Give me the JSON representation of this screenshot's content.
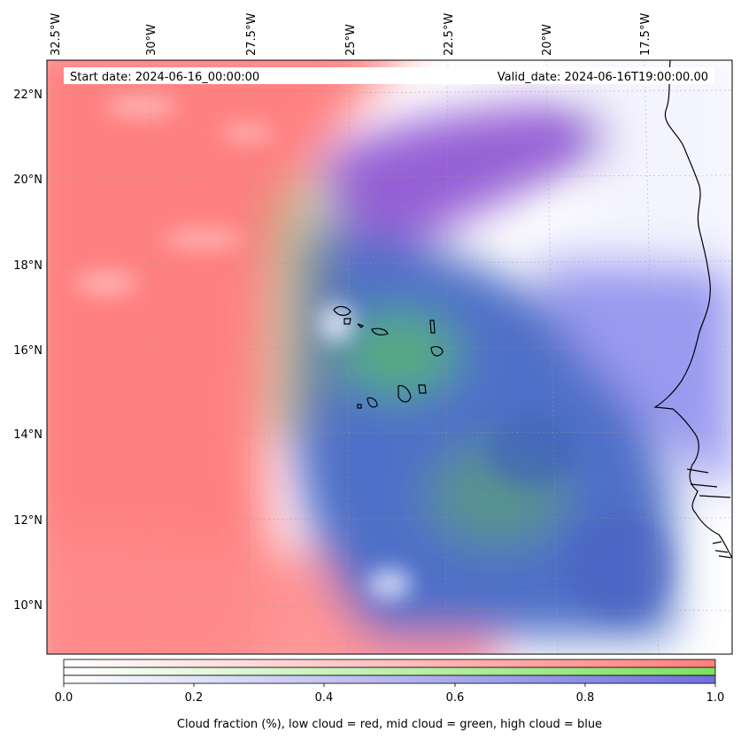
{
  "map": {
    "lon_labels": [
      "32.5°W",
      "30°W",
      "27.5°W",
      "25°W",
      "22.5°W",
      "20°W",
      "17.5°W"
    ],
    "lat_labels": [
      "22°N",
      "20°N",
      "18°N",
      "16°N",
      "14°N",
      "12°N",
      "10°N"
    ],
    "start_date": "Start date: 2024-06-16_00:00:00",
    "valid_date": "Valid_date: 2024-06-16T19:00:00.00",
    "layer_colors": {
      "low": "#ff7f7f",
      "mid": "#7fdf5f",
      "high": "#6f6fdf",
      "clear": "#ffffff"
    }
  },
  "colorbar": {
    "ticks": [
      "0.0",
      "0.2",
      "0.4",
      "0.6",
      "0.8",
      "1.0"
    ],
    "label": "Cloud fraction (%), low cloud = red, mid cloud = green, high cloud = blue",
    "bands": [
      {
        "name": "low",
        "start": "#ffffff",
        "end": "#ff7f7f"
      },
      {
        "name": "mid",
        "start": "#ffffff",
        "end": "#7fdf5f"
      },
      {
        "name": "high",
        "start": "#ffffff",
        "end": "#6f6fdf"
      }
    ]
  }
}
